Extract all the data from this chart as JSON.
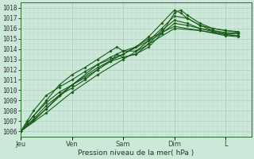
{
  "xlabel": "Pression niveau de la mer( hPa )",
  "ylim": [
    1005.5,
    1018.5
  ],
  "yticks": [
    1006,
    1007,
    1008,
    1009,
    1010,
    1011,
    1012,
    1013,
    1014,
    1015,
    1016,
    1017,
    1018
  ],
  "xlim": [
    0,
    108
  ],
  "day_ticks": [
    0,
    24,
    48,
    72,
    96
  ],
  "day_labels": [
    "Jeu",
    "Ven",
    "Sam",
    "Dim",
    "L"
  ],
  "bg_color": "#cce8d8",
  "grid_major_color": "#aacfbe",
  "grid_minor_color": "#b8d8c8",
  "line_color": "#1a5c1a",
  "line_width": 0.8,
  "series": [
    [
      0,
      1006.0,
      3,
      1006.8,
      6,
      1007.5,
      12,
      1008.8,
      18,
      1009.8,
      24,
      1010.5,
      30,
      1011.2,
      36,
      1012.0,
      42,
      1012.8,
      45,
      1013.5,
      48,
      1013.2,
      54,
      1013.5,
      60,
      1014.2,
      66,
      1015.5,
      72,
      1017.5,
      75,
      1017.8,
      78,
      1017.3,
      84,
      1016.5,
      90,
      1016.0,
      96,
      1015.8,
      102,
      1015.6
    ],
    [
      0,
      1006.0,
      3,
      1007.0,
      6,
      1008.0,
      12,
      1009.5,
      18,
      1010.3,
      24,
      1011.0,
      30,
      1011.8,
      36,
      1012.5,
      42,
      1013.2,
      48,
      1013.8,
      54,
      1013.8,
      60,
      1014.8,
      66,
      1016.0,
      72,
      1017.2,
      78,
      1017.0,
      84,
      1016.3,
      90,
      1016.0,
      96,
      1015.8,
      102,
      1015.7
    ],
    [
      0,
      1006.0,
      6,
      1007.2,
      12,
      1008.5,
      18,
      1009.5,
      24,
      1010.2,
      30,
      1011.0,
      36,
      1012.0,
      42,
      1012.8,
      48,
      1013.2,
      54,
      1013.5,
      60,
      1014.5,
      66,
      1015.8,
      72,
      1016.8,
      78,
      1016.5,
      84,
      1016.0,
      90,
      1015.8,
      96,
      1015.5,
      102,
      1015.5
    ],
    [
      0,
      1006.0,
      6,
      1007.5,
      12,
      1009.0,
      18,
      1010.5,
      24,
      1011.5,
      30,
      1012.2,
      36,
      1013.0,
      42,
      1013.8,
      45,
      1014.2,
      48,
      1013.8,
      54,
      1014.2,
      60,
      1015.2,
      66,
      1016.5,
      72,
      1017.8,
      75,
      1017.5,
      78,
      1017.0,
      84,
      1016.3,
      90,
      1015.8,
      96,
      1015.6,
      102,
      1015.5
    ],
    [
      0,
      1006.0,
      6,
      1007.0,
      12,
      1008.2,
      18,
      1009.5,
      24,
      1010.5,
      36,
      1012.5,
      48,
      1013.5,
      60,
      1014.8,
      66,
      1015.5,
      72,
      1016.5,
      78,
      1016.3,
      84,
      1016.0,
      90,
      1015.7,
      96,
      1015.4,
      102,
      1015.3
    ],
    [
      0,
      1006.0,
      12,
      1007.8,
      24,
      1009.8,
      36,
      1011.5,
      48,
      1013.0,
      60,
      1014.5,
      72,
      1016.0,
      84,
      1015.8,
      96,
      1015.3,
      102,
      1015.2
    ],
    [
      0,
      1006.0,
      12,
      1008.2,
      24,
      1010.5,
      36,
      1012.2,
      48,
      1013.5,
      60,
      1015.0,
      72,
      1016.2,
      84,
      1015.8,
      96,
      1015.4,
      102,
      1015.3
    ]
  ],
  "marker_size": 1.8,
  "xlabel_fontsize": 6.5,
  "ytick_fontsize": 5.5,
  "xtick_fontsize": 6.0
}
